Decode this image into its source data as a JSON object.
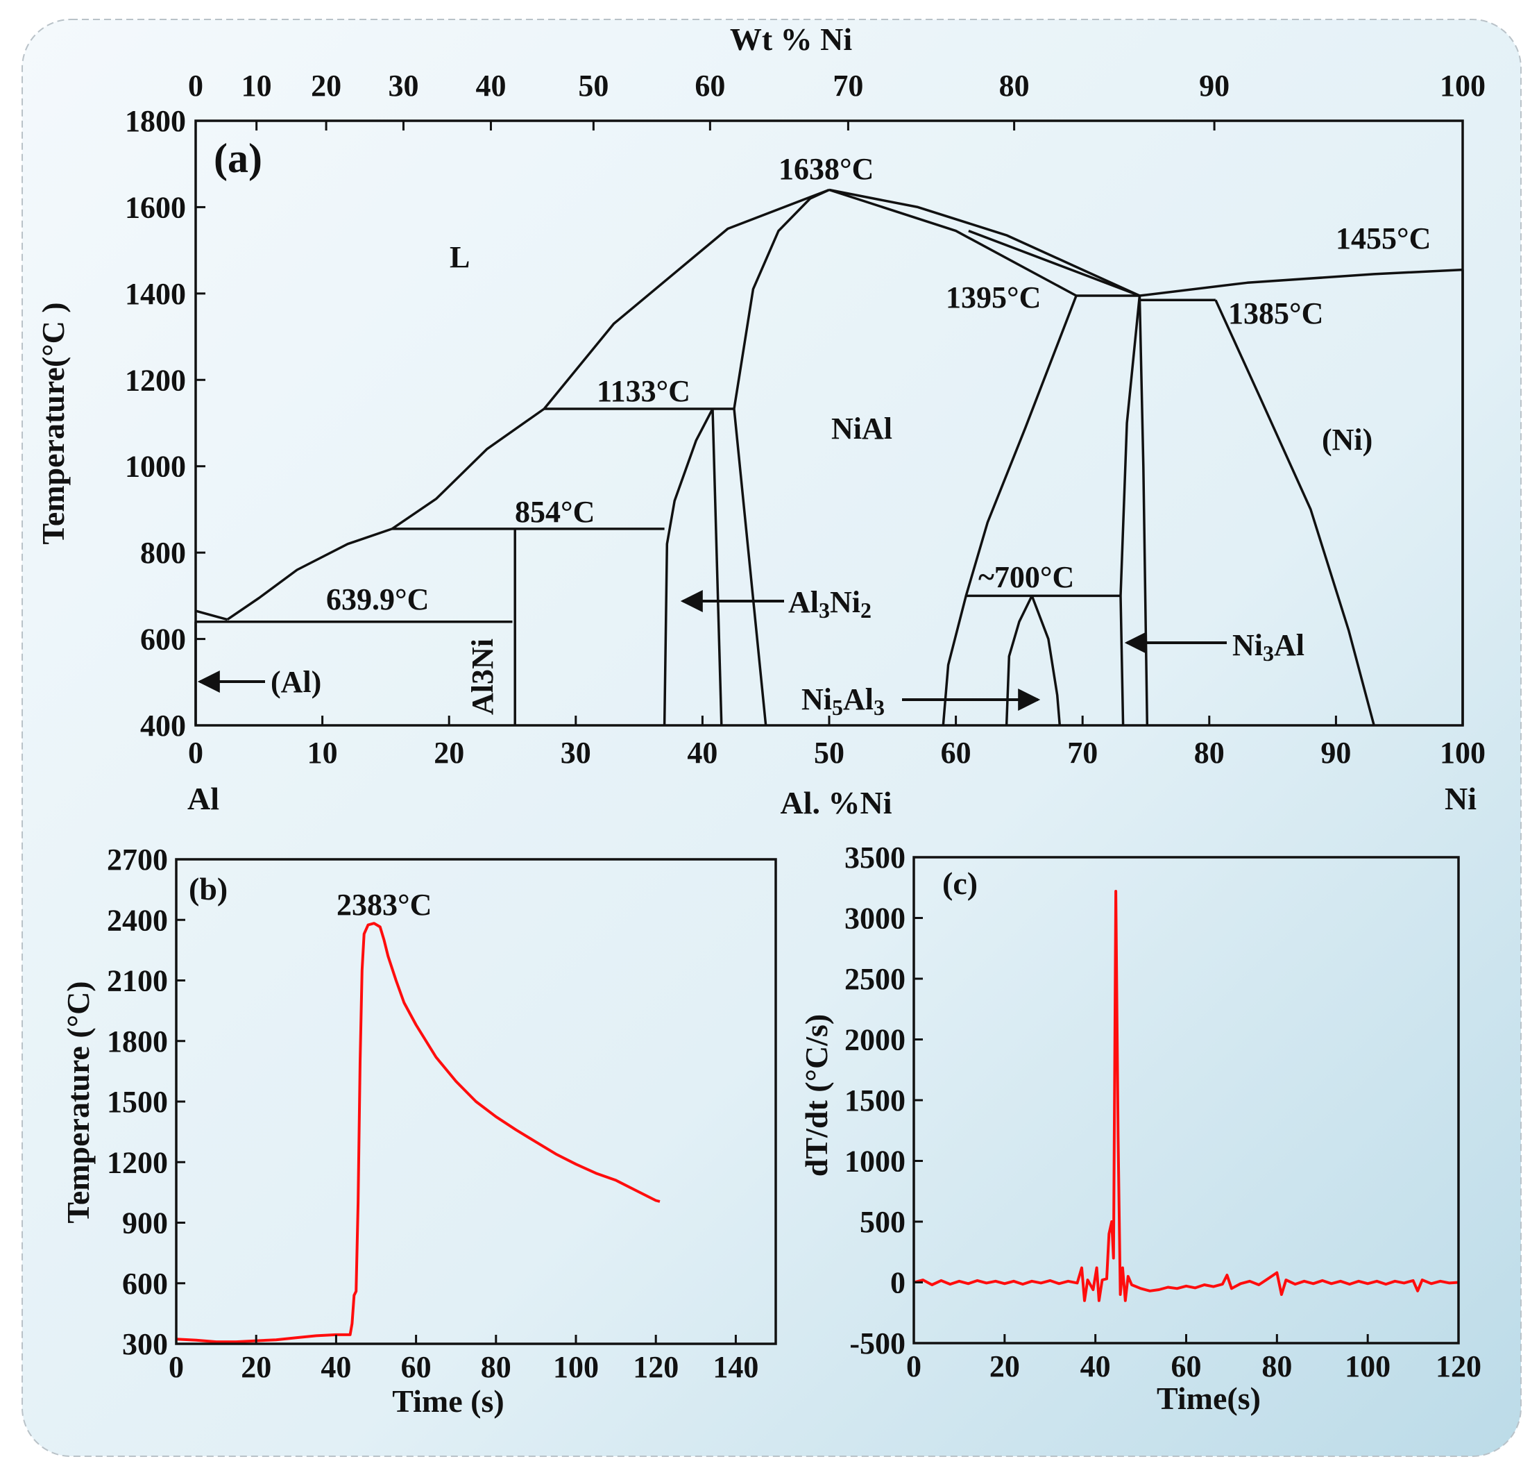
{
  "colors": {
    "curve": "#ff0d0d",
    "ink": "#111111",
    "panel_bg_top": "#f3f8fb",
    "panel_bg_bottom": "#c7e1ec"
  },
  "chart_data": [
    {
      "panel": "a",
      "type": "line",
      "label": "(a)",
      "title": "",
      "xlabel": "Al. %Ni",
      "x_end_labels": [
        "Al",
        "Ni"
      ],
      "top_xlabel": "Wt % Ni",
      "ylabel": "Temperature(°C )",
      "xlim": [
        0,
        100
      ],
      "ylim": [
        400,
        1800
      ],
      "x_ticks": [
        "0",
        "10",
        "20",
        "30",
        "40",
        "50",
        "60",
        "70",
        "80",
        "90",
        "100"
      ],
      "y_ticks": [
        "400",
        "600",
        "800",
        "1000",
        "1200",
        "1400",
        "1600",
        "1800"
      ],
      "top_ticks": [
        {
          "label": "0",
          "at": 0
        },
        {
          "label": "10",
          "at": 4.8
        },
        {
          "label": "20",
          "at": 10.3
        },
        {
          "label": "30",
          "at": 16.4
        },
        {
          "label": "40",
          "at": 23.3
        },
        {
          "label": "50",
          "at": 31.4
        },
        {
          "label": "60",
          "at": 40.6
        },
        {
          "label": "70",
          "at": 51.5
        },
        {
          "label": "80",
          "at": 64.6
        },
        {
          "label": "90",
          "at": 80.4
        },
        {
          "label": "100",
          "at": 100
        }
      ],
      "series": [
        {
          "name": "liquidus-left-edge",
          "points": [
            [
              0,
              665
            ],
            [
              2.5,
              645
            ]
          ]
        },
        {
          "name": "liquidus-al-side",
          "points": [
            [
              2.5,
              645
            ],
            [
              5,
              695
            ],
            [
              8,
              760
            ],
            [
              12,
              820
            ],
            [
              15.5,
              855
            ]
          ]
        },
        {
          "name": "liquidus-al3ni",
          "points": [
            [
              15.5,
              855
            ],
            [
              19,
              925
            ],
            [
              23,
              1040
            ],
            [
              27.5,
              1133
            ]
          ]
        },
        {
          "name": "liquidus-al3ni2",
          "points": [
            [
              27.5,
              1133
            ],
            [
              33,
              1330
            ],
            [
              42,
              1550
            ],
            [
              50,
              1640
            ]
          ]
        },
        {
          "name": "liquidus-ni-rich",
          "points": [
            [
              50,
              1640
            ],
            [
              57,
              1600
            ],
            [
              64,
              1535
            ],
            [
              74.5,
              1395
            ]
          ]
        },
        {
          "name": "liquidus-ni",
          "points": [
            [
              74.5,
              1395
            ],
            [
              83,
              1425
            ],
            [
              93,
              1445
            ],
            [
              100,
              1455
            ]
          ]
        },
        {
          "name": "nial-solidus-left",
          "points": [
            [
              42.5,
              1133
            ],
            [
              44,
              1410
            ],
            [
              46,
              1545
            ],
            [
              48.5,
              1620
            ],
            [
              50,
              1640
            ]
          ]
        },
        {
          "name": "nial-solidus-right",
          "points": [
            [
              50,
              1640
            ],
            [
              60,
              1545
            ],
            [
              69.5,
              1395
            ]
          ]
        },
        {
          "name": "ni3al-peritectic-line",
          "points": [
            [
              74.5,
              1395
            ],
            [
              61,
              1545
            ]
          ]
        },
        {
          "name": "eutectic-639",
          "points": [
            [
              0,
              640
            ],
            [
              25,
              640
            ]
          ]
        },
        {
          "name": "peritectic-854",
          "points": [
            [
              15.5,
              855
            ],
            [
              37,
              855
            ]
          ]
        },
        {
          "name": "peritectic-1133",
          "points": [
            [
              27.5,
              1133
            ],
            [
              42.5,
              1133
            ]
          ]
        },
        {
          "name": "peritectic-1395",
          "points": [
            [
              69.5,
              1395
            ],
            [
              74.5,
              1395
            ]
          ]
        },
        {
          "name": "eutectic-1385",
          "points": [
            [
              74.5,
              1385
            ],
            [
              80.5,
              1385
            ]
          ]
        },
        {
          "name": "reaction-700",
          "points": [
            [
              60.8,
              700
            ],
            [
              73,
              700
            ]
          ]
        },
        {
          "name": "al-solvus",
          "points": [
            [
              0,
              400
            ],
            [
              0,
              640
            ]
          ]
        },
        {
          "name": "al3ni-line",
          "points": [
            [
              25.2,
              400
            ],
            [
              25.2,
              855
            ]
          ]
        },
        {
          "name": "al3ni2-left",
          "points": [
            [
              37,
              400
            ],
            [
              37.2,
              820
            ],
            [
              37.8,
              920
            ],
            [
              39.5,
              1060
            ],
            [
              40.8,
              1133
            ]
          ]
        },
        {
          "name": "al3ni2-right",
          "points": [
            [
              41.5,
              400
            ],
            [
              40.8,
              1133
            ]
          ]
        },
        {
          "name": "nial-left-boundary",
          "points": [
            [
              45,
              400
            ],
            [
              42.5,
              1133
            ]
          ]
        },
        {
          "name": "nial-right-boundary",
          "points": [
            [
              59,
              400
            ],
            [
              59.4,
              540
            ],
            [
              60.8,
              700
            ],
            [
              62.5,
              870
            ],
            [
              65.5,
              1090
            ],
            [
              69.5,
              1395
            ]
          ]
        },
        {
          "name": "ni5al3-left",
          "points": [
            [
              64,
              400
            ],
            [
              64.2,
              560
            ],
            [
              65,
              640
            ],
            [
              66,
              700
            ]
          ]
        },
        {
          "name": "ni5al3-right",
          "points": [
            [
              66,
              700
            ],
            [
              67.3,
              600
            ],
            [
              68,
              470
            ],
            [
              68.2,
              400
            ]
          ]
        },
        {
          "name": "ni3al-left",
          "points": [
            [
              73.2,
              400
            ],
            [
              73,
              700
            ],
            [
              73.5,
              1100
            ],
            [
              74.5,
              1395
            ]
          ]
        },
        {
          "name": "ni3al-right",
          "points": [
            [
              75.1,
              400
            ],
            [
              74.8,
              1000
            ],
            [
              74.5,
              1395
            ]
          ]
        },
        {
          "name": "ni-solvus",
          "points": [
            [
              93,
              400
            ],
            [
              91,
              620
            ],
            [
              88,
              900
            ],
            [
              84,
              1160
            ],
            [
              80.5,
              1385
            ]
          ]
        },
        {
          "name": "ni-right-edge",
          "points": [
            [
              100,
              400
            ],
            [
              100,
              1455
            ]
          ]
        }
      ],
      "annotations": [
        "1638°C",
        "1455°C",
        "1395°C",
        "1385°C",
        "1133°C",
        "854°C",
        "639.9°C",
        "~700°C",
        "L",
        "NiAl",
        "(Ni)",
        "(Al)",
        "Al3Ni",
        "Al",
        "Ni",
        "Al3Ni2",
        "Ni5Al3",
        "Ni3Al"
      ]
    },
    {
      "panel": "b",
      "type": "line",
      "label": "(b)",
      "title": "",
      "xlabel": "Time (s)",
      "ylabel": "Temperature (°C)",
      "xlim": [
        0,
        150
      ],
      "ylim": [
        300,
        2700
      ],
      "x_ticks": [
        "0",
        "20",
        "40",
        "60",
        "80",
        "100",
        "120",
        "140"
      ],
      "y_ticks": [
        "300",
        "600",
        "900",
        "1200",
        "1500",
        "1800",
        "2100",
        "2400",
        "2700"
      ],
      "peak_annotation": "2383°C",
      "series": [
        {
          "name": "temperature",
          "points": [
            [
              0,
              323
            ],
            [
              5,
              318
            ],
            [
              10,
              310
            ],
            [
              15,
              310
            ],
            [
              20,
              315
            ],
            [
              25,
              320
            ],
            [
              30,
              330
            ],
            [
              35,
              340
            ],
            [
              40,
              345
            ],
            [
              43.5,
              345
            ],
            [
              44,
              400
            ],
            [
              44.5,
              540
            ],
            [
              45,
              560
            ],
            [
              45.5,
              1000
            ],
            [
              46,
              1700
            ],
            [
              46.5,
              2150
            ],
            [
              47,
              2330
            ],
            [
              48,
              2375
            ],
            [
              49.5,
              2383
            ],
            [
              51,
              2365
            ],
            [
              52,
              2300
            ],
            [
              53,
              2220
            ],
            [
              55,
              2100
            ],
            [
              57,
              1990
            ],
            [
              60,
              1880
            ],
            [
              65,
              1720
            ],
            [
              70,
              1600
            ],
            [
              75,
              1500
            ],
            [
              80,
              1425
            ],
            [
              85,
              1360
            ],
            [
              90,
              1300
            ],
            [
              95,
              1240
            ],
            [
              100,
              1190
            ],
            [
              105,
              1145
            ],
            [
              110,
              1110
            ],
            [
              115,
              1060
            ],
            [
              120,
              1010
            ],
            [
              121,
              1005
            ]
          ]
        }
      ]
    },
    {
      "panel": "c",
      "type": "line",
      "label": "(c)",
      "title": "",
      "xlabel": "Time(s)",
      "ylabel": "dT/dt  (°C/s)",
      "xlim": [
        0,
        120
      ],
      "ylim": [
        -500,
        3500
      ],
      "x_ticks": [
        "0",
        "20",
        "40",
        "60",
        "80",
        "100",
        "120"
      ],
      "y_ticks": [
        "-500",
        "0",
        "500",
        "1000",
        "1500",
        "2000",
        "2500",
        "3000",
        "3500"
      ],
      "series": [
        {
          "name": "dT/dt",
          "points": [
            [
              0,
              0
            ],
            [
              2,
              20
            ],
            [
              4,
              -20
            ],
            [
              6,
              15
            ],
            [
              8,
              -15
            ],
            [
              10,
              10
            ],
            [
              12,
              -10
            ],
            [
              14,
              15
            ],
            [
              16,
              -5
            ],
            [
              18,
              10
            ],
            [
              20,
              -10
            ],
            [
              22,
              10
            ],
            [
              24,
              -15
            ],
            [
              26,
              10
            ],
            [
              28,
              -5
            ],
            [
              30,
              15
            ],
            [
              32,
              -10
            ],
            [
              34,
              10
            ],
            [
              36,
              -5
            ],
            [
              37,
              120
            ],
            [
              37.6,
              -150
            ],
            [
              38.3,
              20
            ],
            [
              39.5,
              -60
            ],
            [
              40.3,
              120
            ],
            [
              40.8,
              -150
            ],
            [
              41.5,
              20
            ],
            [
              42.5,
              30
            ],
            [
              43,
              400
            ],
            [
              43.6,
              500
            ],
            [
              44,
              200
            ],
            [
              44.5,
              3220
            ],
            [
              45,
              1200
            ],
            [
              45.5,
              -100
            ],
            [
              46,
              120
            ],
            [
              46.6,
              -150
            ],
            [
              47.2,
              50
            ],
            [
              48,
              -20
            ],
            [
              50,
              -50
            ],
            [
              52,
              -70
            ],
            [
              54,
              -60
            ],
            [
              56,
              -40
            ],
            [
              58,
              -50
            ],
            [
              60,
              -30
            ],
            [
              62,
              -45
            ],
            [
              64,
              -20
            ],
            [
              66,
              -35
            ],
            [
              68,
              -15
            ],
            [
              69,
              60
            ],
            [
              70,
              -50
            ],
            [
              72,
              -10
            ],
            [
              74,
              10
            ],
            [
              76,
              -20
            ],
            [
              78,
              30
            ],
            [
              80,
              80
            ],
            [
              81,
              -100
            ],
            [
              82,
              20
            ],
            [
              84,
              -15
            ],
            [
              86,
              10
            ],
            [
              88,
              -10
            ],
            [
              90,
              15
            ],
            [
              92,
              -10
            ],
            [
              94,
              10
            ],
            [
              96,
              -15
            ],
            [
              98,
              10
            ],
            [
              100,
              -10
            ],
            [
              102,
              10
            ],
            [
              104,
              -15
            ],
            [
              106,
              10
            ],
            [
              108,
              -5
            ],
            [
              110,
              15
            ],
            [
              111,
              -70
            ],
            [
              112,
              20
            ],
            [
              114,
              -10
            ],
            [
              116,
              10
            ],
            [
              118,
              -5
            ],
            [
              120,
              0
            ]
          ]
        }
      ]
    }
  ]
}
